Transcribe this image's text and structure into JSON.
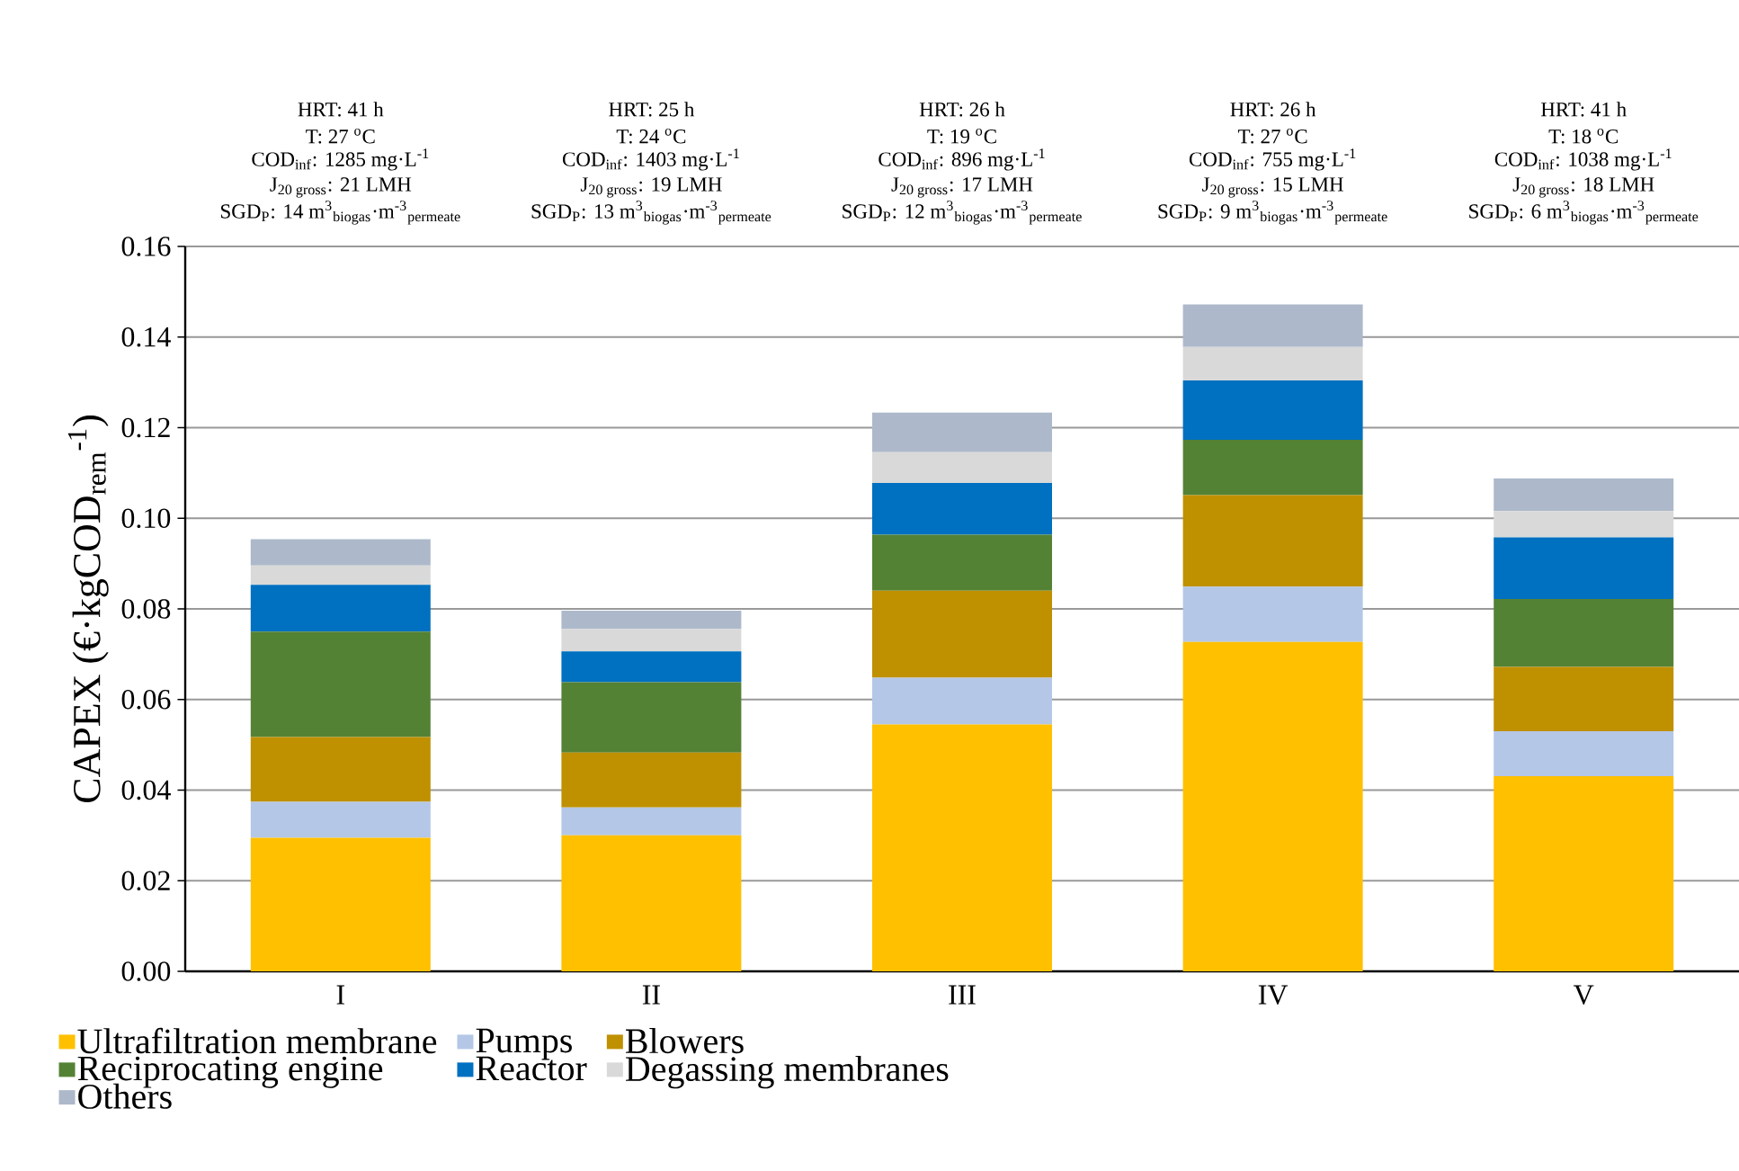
{
  "chart_data": {
    "type": "bar",
    "stacked": true,
    "ylabel": "CAPEX (€·kgCOD$_{rem}$$^{-1}$)",
    "categories": [
      "I",
      "II",
      "III",
      "IV",
      "V"
    ],
    "series": [
      {
        "name": "Ultrafiltration membrane",
        "color": "#ffc000",
        "values": [
          0.0295,
          0.03,
          0.0545,
          0.0727,
          0.0431
        ]
      },
      {
        "name": "Pumps",
        "color": "#b4c7e7",
        "values": [
          0.0079,
          0.0062,
          0.0103,
          0.0122,
          0.0099
        ]
      },
      {
        "name": "Blowers",
        "color": "#bf9000",
        "values": [
          0.0143,
          0.0121,
          0.0192,
          0.0202,
          0.0142
        ]
      },
      {
        "name": "Reciprocating engine",
        "color": "#548235",
        "values": [
          0.0233,
          0.0155,
          0.0124,
          0.0122,
          0.015
        ]
      },
      {
        "name": "Reactor",
        "color": "#0070c0",
        "values": [
          0.0103,
          0.0068,
          0.0114,
          0.0131,
          0.0136
        ]
      },
      {
        "name": "Degassing membranes",
        "color": "#d9d9d9",
        "values": [
          0.0043,
          0.005,
          0.0068,
          0.0074,
          0.0058
        ]
      },
      {
        "name": "Others",
        "color": "#adb9ca",
        "values": [
          0.0058,
          0.004,
          0.0087,
          0.0094,
          0.0072
        ]
      }
    ],
    "ylim": [
      0,
      0.16
    ],
    "yticks": [
      {
        "value": 0,
        "label": "0.00"
      },
      {
        "value": 0.02,
        "label": "0.02"
      },
      {
        "value": 0.04,
        "label": "0.04"
      },
      {
        "value": 0.06,
        "label": "0.06"
      },
      {
        "value": 0.08,
        "label": "0.08"
      },
      {
        "value": 0.1,
        "label": "0.10"
      },
      {
        "value": 0.12,
        "label": "0.12"
      },
      {
        "value": 0.14,
        "label": "0.14"
      },
      {
        "value": 0.16,
        "label": "0.16"
      }
    ],
    "grid": "y",
    "legend": "bottom",
    "annotations": [
      "HRT: 41 h",
      "T: 27 $^{o}$C",
      "COD$_{inf}$: 1285 mg·L$^{-1}$",
      "J$_{20 gross}$: 21 LMH",
      "SGD$_{P}$: 14 m$^{3}$$_{biogas}$·m$^{-3}$$_{permeate}$",
      "HRT: 25 h",
      "T: 24 $^{o}$C",
      "COD$_{inf}$: 1403 mg·L$^{-1}$",
      "J$_{20 gross}$: 19 LMH",
      "SGD$_{P}$: 13 m$^{3}$$_{biogas}$·m$^{-3}$$_{permeate}$",
      "HRT: 26 h",
      "T: 19 $^{o}$C",
      "COD$_{inf}$: 896 mg·L$^{-1}$",
      "J$_{20 gross}$: 17 LMH",
      "SGD$_{P}$: 12 m$^{3}$$_{biogas}$·m$^{-3}$$_{permeate}$",
      "HRT: 26 h",
      "T: 27 $^{o}$C",
      "COD$_{inf}$: 755 mg·L$^{-1}$",
      "J$_{20 gross}$: 15 LMH",
      "SGD$_{P}$: 9 m$^{3}$$_{biogas}$·m$^{-3}$$_{permeate}$",
      "HRT: 41 h",
      "T: 18 $^{o}$C",
      "COD$_{inf}$: 1038 mg·L$^{-1}$",
      "J$_{20 gross}$: 18 LMH",
      "SGD$_{P}$: 6 m$^{3}$$_{biogas}$·m$^{-3}$$_{permeate}$"
    ]
  }
}
